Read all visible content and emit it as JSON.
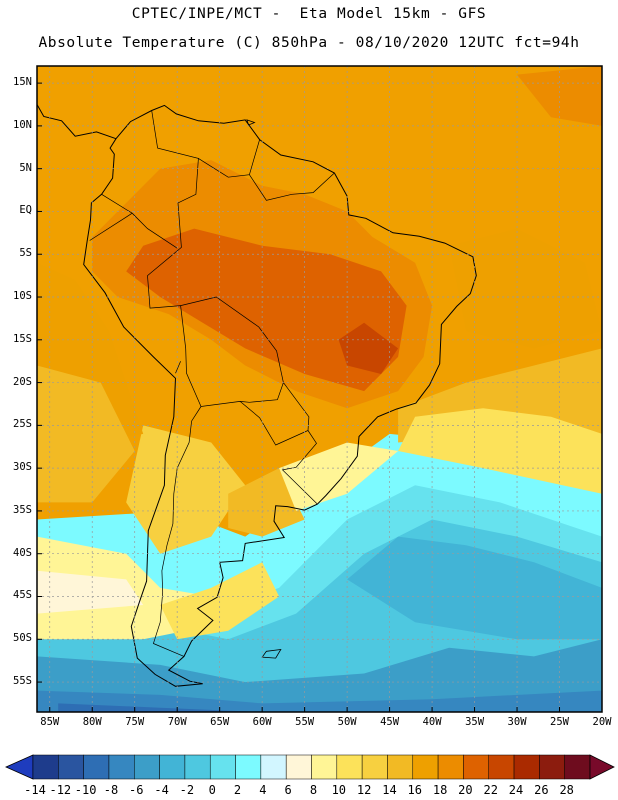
{
  "header": {
    "line1": "CPTEC/INPE/MCT -  Eta Model 15km - GFS",
    "line2": "Absolute Temperature (C) 850hPa - 08/10/2020 12UTC fct=94h"
  },
  "map": {
    "lat_labels": [
      "15N",
      "10N",
      "5N",
      "EQ",
      "5S",
      "10S",
      "15S",
      "20S",
      "25S",
      "30S",
      "35S",
      "40S",
      "45S",
      "50S",
      "55S"
    ],
    "lat_values": [
      15,
      10,
      5,
      0,
      -5,
      -10,
      -15,
      -20,
      -25,
      -30,
      -35,
      -40,
      -45,
      -50,
      -55
    ],
    "lon_labels": [
      "85W",
      "80W",
      "75W",
      "70W",
      "65W",
      "60W",
      "55W",
      "50W",
      "45W",
      "40W",
      "35W",
      "30W",
      "25W",
      "20W"
    ],
    "lon_values": [
      -85,
      -80,
      -75,
      -70,
      -65,
      -60,
      -55,
      -50,
      -45,
      -40,
      -35,
      -30,
      -25,
      -20
    ],
    "extent": {
      "lon_min": -86.5,
      "lon_max": -20,
      "lat_min": -58.5,
      "lat_max": 17
    },
    "colors": {
      "frame": "#000000",
      "gridline": "#9a9a9a",
      "coast": "#000000",
      "background": "#f0a000"
    }
  },
  "colorbar": {
    "labels": [
      "-14",
      "-12",
      "-10",
      "-8",
      "-6",
      "-4",
      "-2",
      "0",
      "2",
      "4",
      "6",
      "8",
      "10",
      "12",
      "14",
      "16",
      "18",
      "20",
      "22",
      "24",
      "26",
      "28"
    ],
    "colors": [
      "#1e3c8c",
      "#2a55a0",
      "#2e6eb4",
      "#3687c0",
      "#3c9ec8",
      "#42b4d6",
      "#4ec8e0",
      "#66e2ee",
      "#7cfaff",
      "#d2f6ff",
      "#fff6d8",
      "#fff596",
      "#fce25a",
      "#f7d040",
      "#f2ba24",
      "#eea000",
      "#ec8c00",
      "#de6200",
      "#c84600",
      "#aa2a00",
      "#8c1c0e",
      "#6e0c1e"
    ],
    "under_color": "#1e3cbe",
    "over_color": "#780a2a"
  }
}
